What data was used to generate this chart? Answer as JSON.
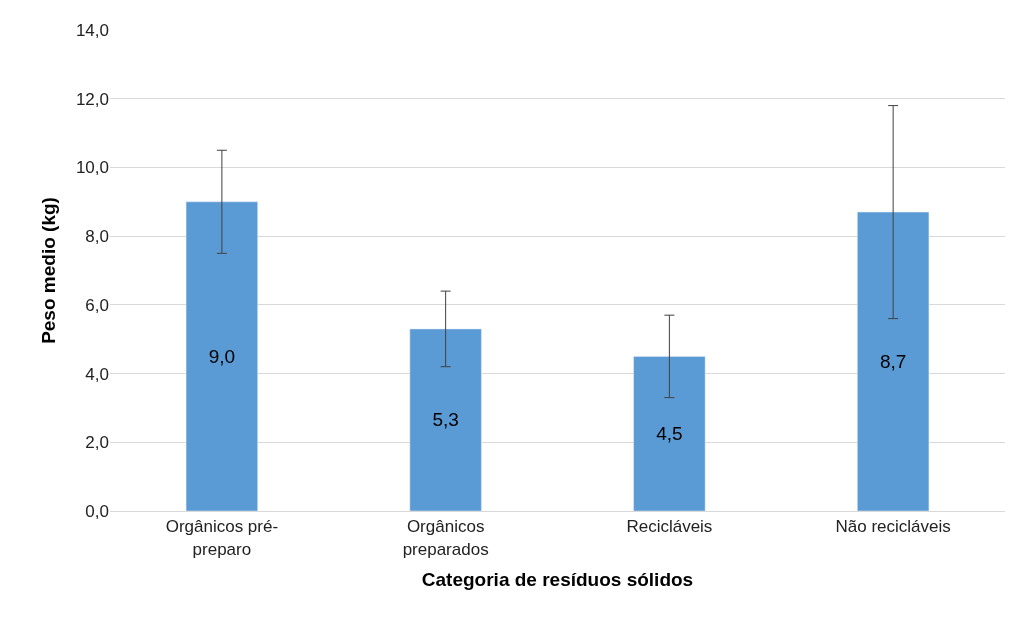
{
  "chart_data": {
    "type": "bar",
    "xlabel": "Categoria de resíduos sólidos",
    "ylabel": "Peso medio (kg)",
    "categories": [
      "Orgânicos pré-preparo",
      "Orgânicos preparados",
      "Recicláveis",
      "Não recicláveis"
    ],
    "values": [
      9.0,
      5.3,
      4.5,
      8.7
    ],
    "errors": [
      1.5,
      1.1,
      1.2,
      3.1
    ],
    "value_labels": [
      "9,0",
      "5,3",
      "4,5",
      "8,7"
    ],
    "color": "#5b9bd5",
    "ylim": [
      0,
      14
    ],
    "yticks": [
      {
        "value": 0,
        "label": "0,0"
      },
      {
        "value": 2,
        "label": "2,0"
      },
      {
        "value": 4,
        "label": "4,0"
      },
      {
        "value": 6,
        "label": "6,0"
      },
      {
        "value": 8,
        "label": "8,0"
      },
      {
        "value": 10,
        "label": "10,0"
      },
      {
        "value": 12,
        "label": "12,0"
      },
      {
        "value": 14,
        "label": "14,0"
      }
    ],
    "grid": "y",
    "legend": false
  }
}
